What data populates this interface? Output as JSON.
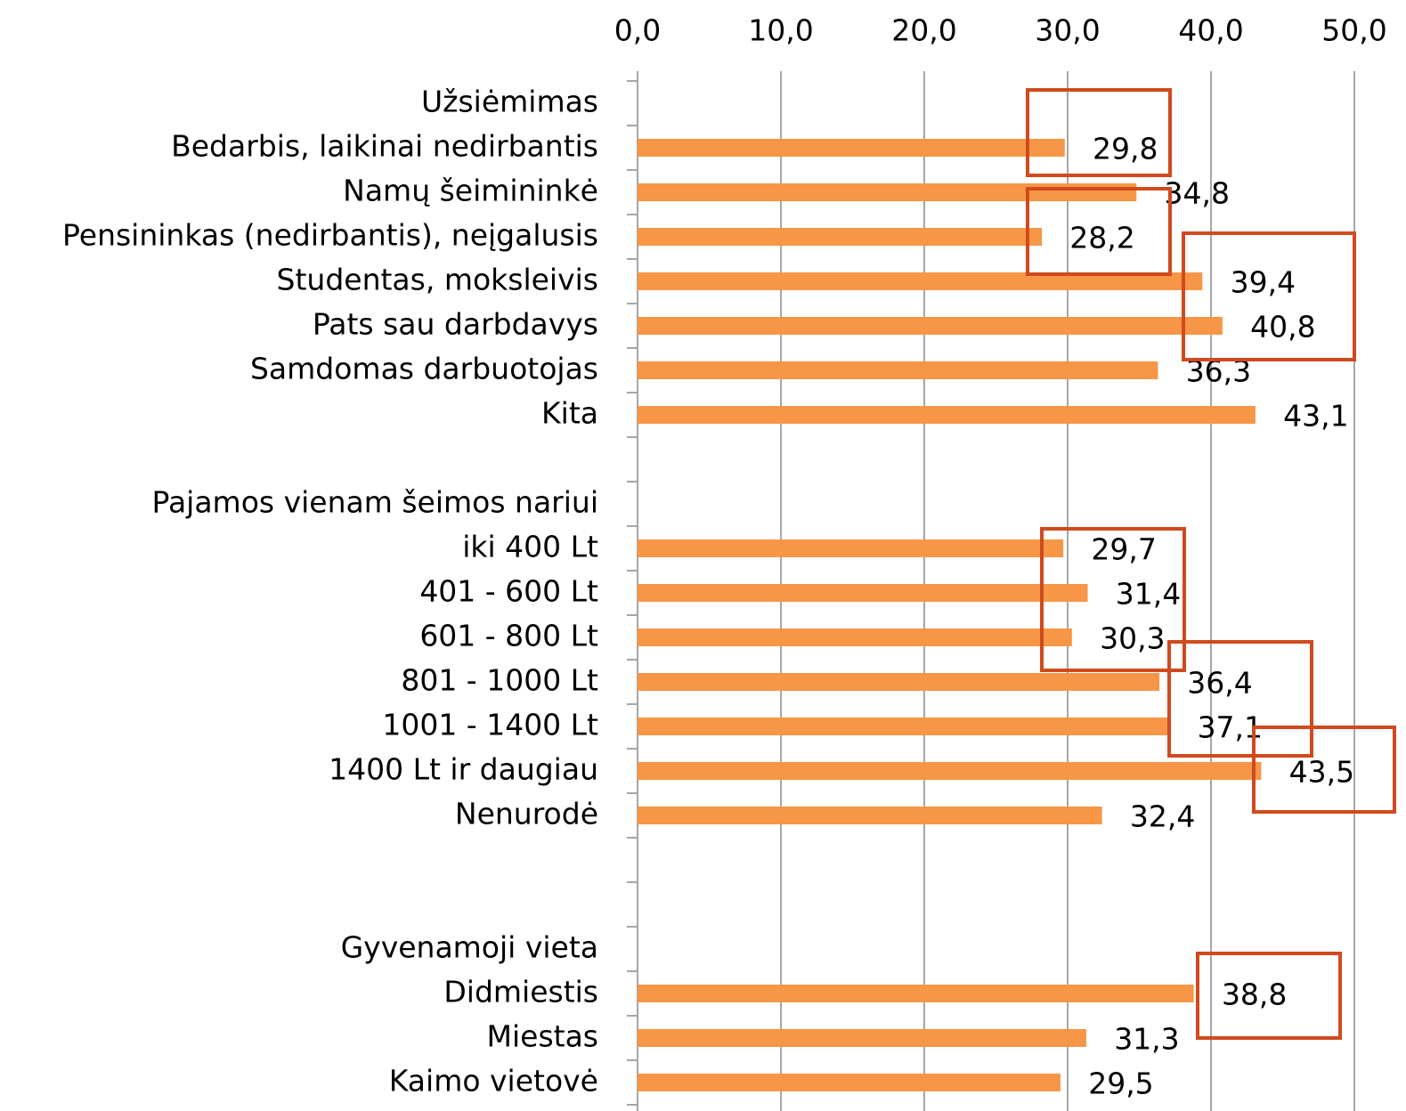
{
  "chart_data": {
    "type": "hbar",
    "categories": [
      "Užsiėmimas",
      "Bedarbis, laikinai nedirbantis",
      "Namų šeimininkė",
      "Pensininkas (nedirbantis), neįgalusis",
      "Studentas, moksleivis",
      "Pats sau darbdavys",
      "Samdomas darbuotojas",
      "Kita",
      null,
      "Pajamos vienam šeimos nariui",
      "iki 400 Lt",
      "401 - 600 Lt",
      "601 - 800 Lt",
      "801 - 1000 Lt",
      "1001 - 1400 Lt",
      "1400 Lt ir daugiau",
      "Nenurodė",
      null,
      null,
      "Gyvenamoji vieta",
      "Didmiestis",
      "Miestas",
      "Kaimo vietovė"
    ],
    "values": [
      null,
      29.8,
      34.8,
      28.2,
      39.4,
      40.8,
      36.3,
      43.1,
      null,
      null,
      29.7,
      31.4,
      30.3,
      36.4,
      37.1,
      43.5,
      32.4,
      null,
      null,
      null,
      38.8,
      31.3,
      29.5
    ],
    "value_labels": [
      null,
      "29,8",
      "34,8",
      "28,2",
      "39,4",
      "40,8",
      "36,3",
      "43,1",
      null,
      null,
      "29,7",
      "31,4",
      "30,3",
      "36,4",
      "37,1",
      "43,5",
      "32,4",
      null,
      null,
      null,
      "38,8",
      "31,3",
      "29,5"
    ],
    "color": "#f79646",
    "xlim": [
      0,
      50
    ],
    "xticks": [
      {
        "value": 0,
        "label": "0,0"
      },
      {
        "value": 10,
        "label": "10,0"
      },
      {
        "value": 20,
        "label": "20,0"
      },
      {
        "value": 30,
        "label": "30,0"
      },
      {
        "value": 40,
        "label": "40,0"
      },
      {
        "value": 50,
        "label": "50,0"
      }
    ],
    "grid": true
  }
}
